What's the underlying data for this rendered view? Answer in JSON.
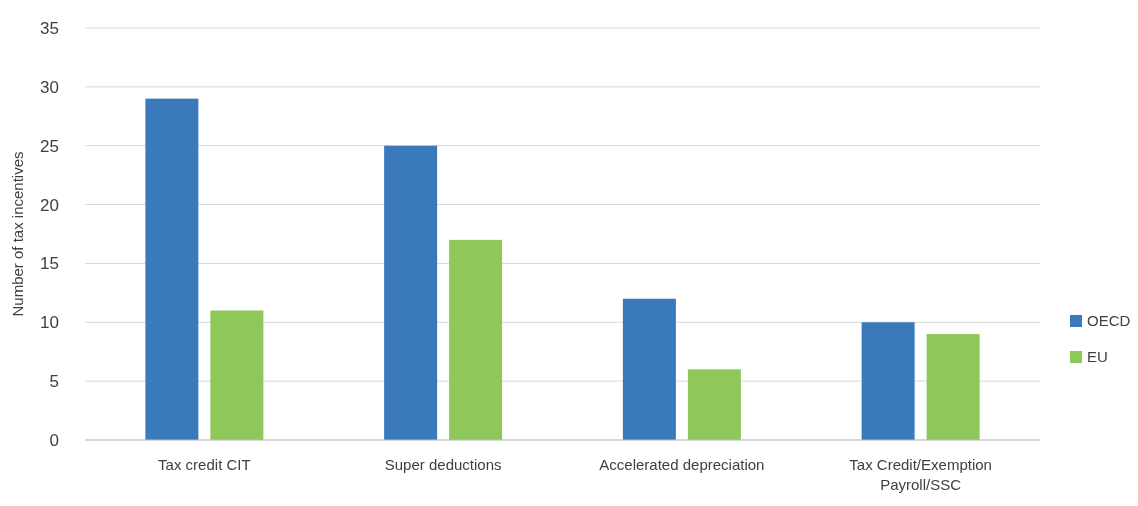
{
  "chart_data": {
    "type": "bar",
    "ylabel": "Number of tax incentives",
    "categories": [
      "Tax credit CIT",
      "Super deductions",
      "Accelerated depreciation",
      "Tax Credit/Exemption Payroll/SSC"
    ],
    "series": [
      {
        "name": "OECD",
        "color": "#3a7aba",
        "values": [
          29,
          25,
          12,
          10
        ]
      },
      {
        "name": "EU",
        "color": "#8fc85a",
        "values": [
          11,
          17,
          6,
          9
        ]
      }
    ],
    "ylim": [
      0,
      35
    ],
    "yticks": [
      0,
      5,
      10,
      15,
      20,
      25,
      30,
      35
    ],
    "grid": "y",
    "legend": "right"
  }
}
